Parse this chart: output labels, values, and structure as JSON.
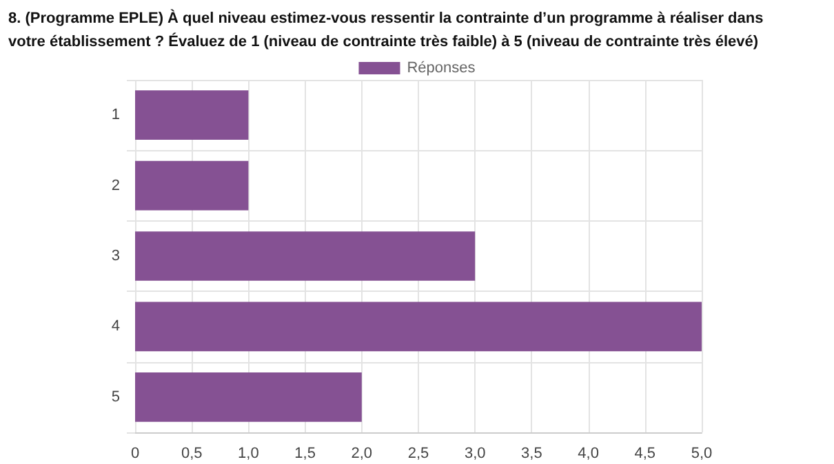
{
  "chart_data": {
    "type": "bar",
    "orientation": "horizontal",
    "title": "8. (Programme EPLE) À quel niveau estimez-vous ressentir la contrainte d’un programme à réaliser dans votre établissement ? Évaluez de 1 (niveau de contrainte très faible) à 5 (niveau de contrainte très élevé)",
    "categories": [
      "1",
      "2",
      "3",
      "4",
      "5"
    ],
    "series": [
      {
        "name": "Réponses",
        "color": "#855193",
        "values": [
          1,
          1,
          3,
          5,
          2
        ]
      }
    ],
    "xlim": [
      0,
      5
    ],
    "xticks": [
      0,
      {
        "value": 0.5,
        "label": "0,5"
      },
      {
        "value": 1,
        "label": "1,0"
      },
      {
        "value": 1.5,
        "label": "1,5"
      },
      {
        "value": 2,
        "label": "2,0"
      },
      {
        "value": 2.5,
        "label": "2,5"
      },
      {
        "value": 3,
        "label": "3,0"
      },
      {
        "value": 3.5,
        "label": "3,5"
      },
      {
        "value": 4,
        "label": "4,0"
      },
      {
        "value": 4.5,
        "label": "4,5"
      },
      {
        "value": 5,
        "label": "5,0"
      }
    ],
    "grid": true,
    "legend": "top"
  }
}
